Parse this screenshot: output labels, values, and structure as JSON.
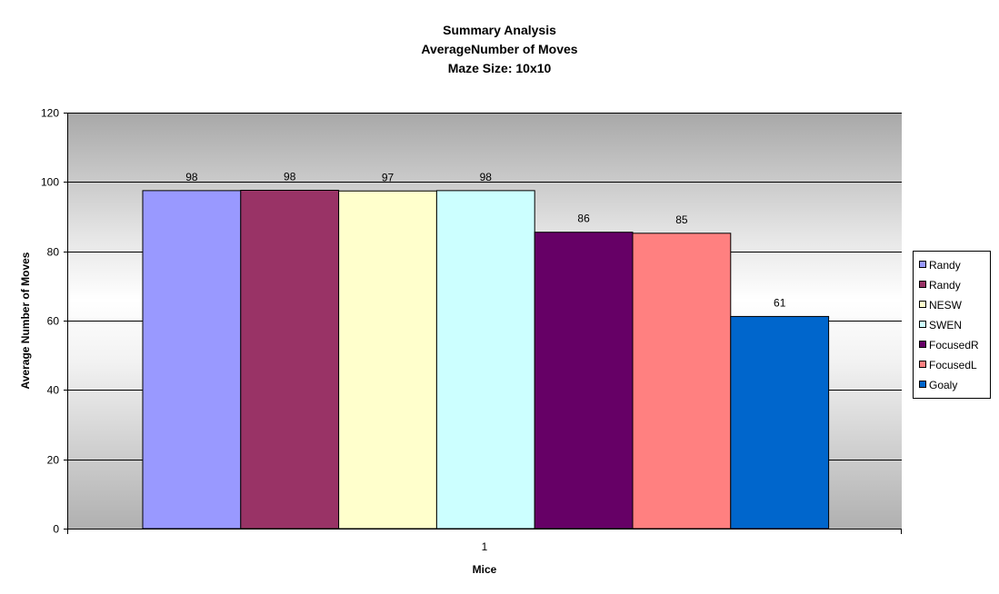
{
  "chart_data": {
    "type": "bar",
    "title_lines": [
      "Summary Analysis",
      "AverageNumber of Moves",
      "Maze Size: 10x10"
    ],
    "xlabel": "Mice",
    "ylabel": "Average Number of Moves",
    "categories": [
      "1"
    ],
    "ylim": [
      0,
      120
    ],
    "yticks": [
      0,
      20,
      40,
      60,
      80,
      100,
      120
    ],
    "grid": true,
    "legend_position": "right",
    "series": [
      {
        "name": "Randy",
        "values": [
          97.5
        ],
        "label": "98",
        "color": "#9999ff"
      },
      {
        "name": "Randy",
        "values": [
          97.6
        ],
        "label": "98",
        "color": "#993366"
      },
      {
        "name": "NESW",
        "values": [
          97.4
        ],
        "label": "97",
        "color": "#ffffcc"
      },
      {
        "name": "SWEN",
        "values": [
          97.5
        ],
        "label": "98",
        "color": "#ccffff"
      },
      {
        "name": "FocusedR",
        "values": [
          85.5
        ],
        "label": "86",
        "color": "#660066"
      },
      {
        "name": "FocusedL",
        "values": [
          85.2
        ],
        "label": "85",
        "color": "#ff8080"
      },
      {
        "name": "Goaly",
        "values": [
          61.2
        ],
        "label": "61",
        "color": "#0066cc"
      }
    ]
  }
}
